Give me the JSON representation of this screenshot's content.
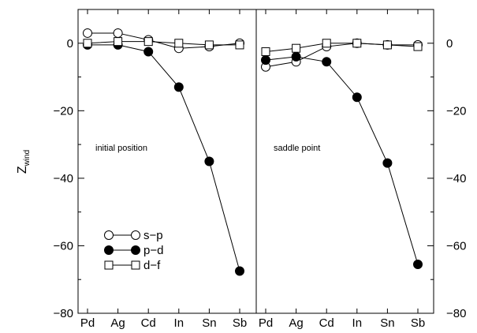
{
  "chart_data": {
    "type": "line",
    "ylabel": "Z",
    "ylabel_subscript": "wind",
    "ylim": [
      -80,
      10
    ],
    "yticks": [
      -80,
      -60,
      -40,
      -20,
      0
    ],
    "ytick_labels": [
      "−80",
      "−60",
      "−40",
      "−20",
      "0"
    ],
    "legend": {
      "position": "bottom-left"
    },
    "panels": [
      {
        "label": "initial position",
        "categories": [
          "Pd",
          "Ag",
          "Cd",
          "In",
          "Sn",
          "Sb"
        ],
        "series": [
          {
            "name": "s−p",
            "marker": "open-circle",
            "values": [
              3,
              3,
              1,
              -1.5,
              -1,
              0
            ]
          },
          {
            "name": "p−d",
            "marker": "filled-circle",
            "values": [
              -0.5,
              -0.5,
              -2.5,
              -13,
              -35,
              -67.5
            ]
          },
          {
            "name": "d−f",
            "marker": "open-square",
            "values": [
              0,
              0.5,
              0.5,
              0,
              -0.5,
              -0.5
            ]
          }
        ]
      },
      {
        "label": "saddle point",
        "categories": [
          "Pd",
          "Ag",
          "Cd",
          "In",
          "Sn",
          "Sb"
        ],
        "series": [
          {
            "name": "s−p",
            "marker": "open-circle",
            "values": [
              -7,
              -5.5,
              -1,
              0,
              -0.5,
              -0.5
            ]
          },
          {
            "name": "p−d",
            "marker": "filled-circle",
            "values": [
              -5,
              -4,
              -5.5,
              -16,
              -35.5,
              -65.5
            ]
          },
          {
            "name": "d−f",
            "marker": "open-square",
            "values": [
              -2.5,
              -1.5,
              0,
              0,
              -0.5,
              -1
            ]
          }
        ]
      }
    ]
  }
}
